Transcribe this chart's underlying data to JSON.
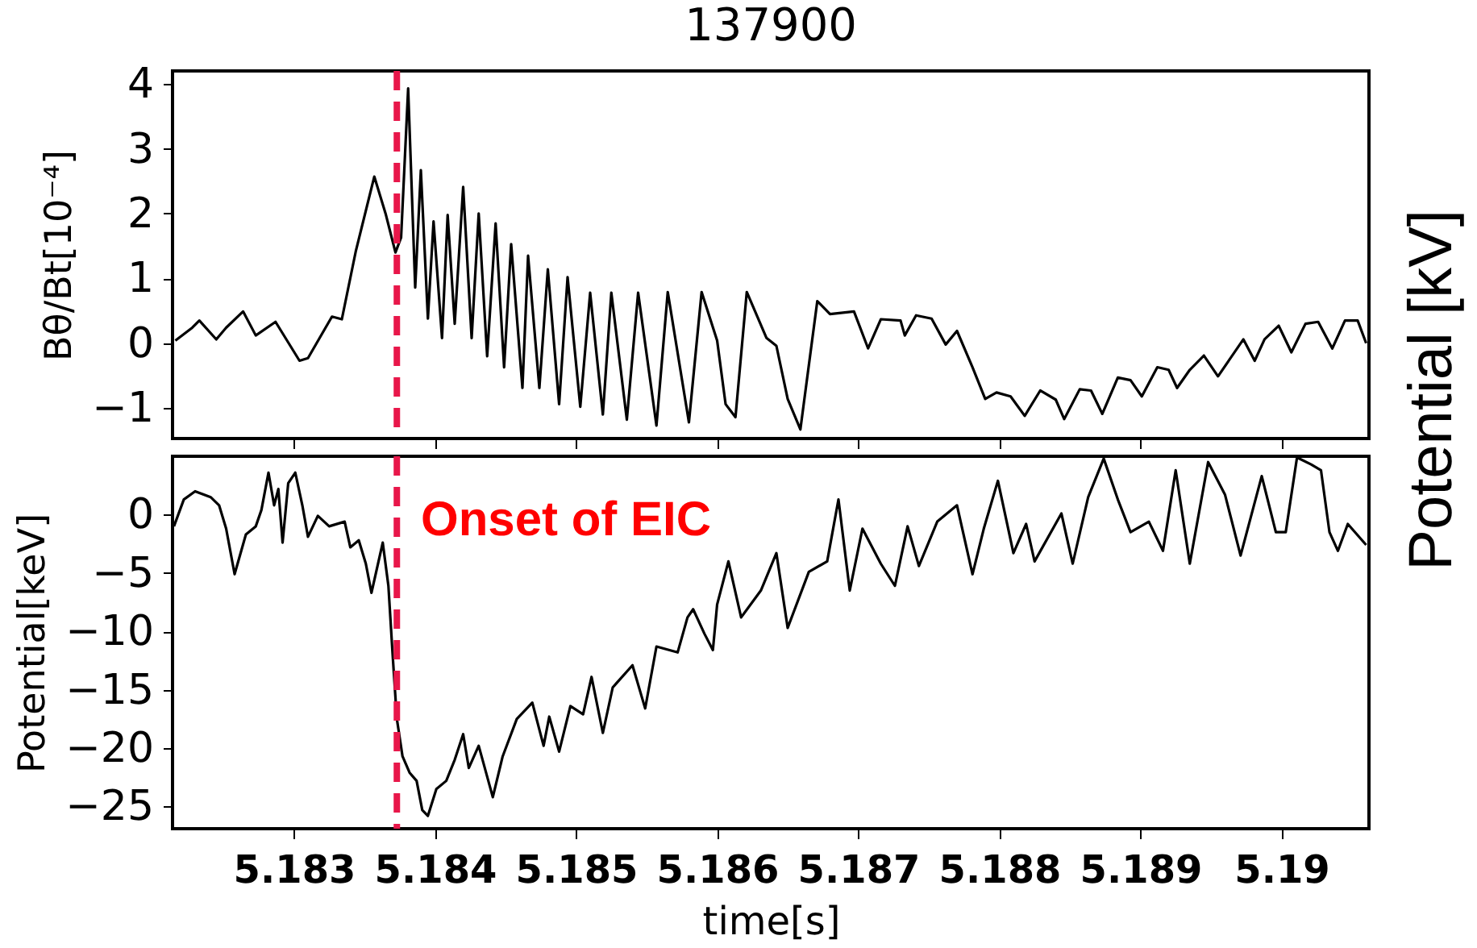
{
  "chart_data": [
    {
      "type": "line",
      "title": "137900",
      "ylabel": "Bθ/Bt[10⁻⁴]",
      "y2label": "Potential [kV]",
      "x": [
        5.18216,
        5.18228,
        5.18233,
        5.18245,
        5.18252,
        5.18264,
        5.18273,
        5.18287,
        5.18304,
        5.1831,
        5.18327,
        5.18334,
        5.18344,
        5.18357,
        5.18365,
        5.18372,
        5.18376,
        5.18381,
        5.18386,
        5.1839,
        5.18395,
        5.18399,
        5.18405,
        5.18409,
        5.18414,
        5.1842,
        5.18426,
        5.18431,
        5.18437,
        5.18443,
        5.18449,
        5.18454,
        5.18462,
        5.18466,
        5.18474,
        5.1848,
        5.18488,
        5.18494,
        5.18503,
        5.1851,
        5.18519,
        5.18525,
        5.18536,
        5.18544,
        5.18557,
        5.18565,
        5.1858,
        5.18589,
        5.186,
        5.18606,
        5.18613,
        5.18621,
        5.18635,
        5.18642,
        5.1865,
        5.18659,
        5.18671,
        5.1868,
        5.18697,
        5.18707,
        5.18716,
        5.1873,
        5.18733,
        5.18741,
        5.18752,
        5.18762,
        5.1877,
        5.18781,
        5.1879,
        5.18798,
        5.18808,
        5.18818,
        5.18829,
        5.1884,
        5.18846,
        5.18857,
        5.18865,
        5.18873,
        5.18884,
        5.18893,
        5.18901,
        5.18912,
        5.1892,
        5.18926,
        5.18935,
        5.18945,
        5.18955,
        5.18973,
        5.18981,
        5.18988,
        5.18998,
        5.19007,
        5.19017,
        5.19026,
        5.19036,
        5.19045,
        5.19054,
        5.1906
      ],
      "series": [
        {
          "color": "#000000",
          "values": [
            0.04,
            0.24,
            0.35,
            0.06,
            0.24,
            0.49,
            0.12,
            0.33,
            -0.27,
            -0.23,
            0.41,
            0.37,
            1.43,
            2.57,
            2.0,
            1.4,
            1.63,
            3.93,
            0.86,
            2.67,
            0.38,
            1.88,
            0.08,
            1.98,
            0.3,
            2.41,
            0.08,
            2.0,
            -0.2,
            1.85,
            -0.37,
            1.53,
            -0.69,
            1.35,
            -0.69,
            1.14,
            -0.94,
            1.02,
            -0.98,
            0.78,
            -1.1,
            0.78,
            -1.18,
            0.78,
            -1.27,
            0.79,
            -1.22,
            0.79,
            0.04,
            -0.94,
            -1.14,
            0.79,
            0.08,
            -0.04,
            -0.86,
            -1.33,
            0.65,
            0.45,
            0.49,
            -0.08,
            0.37,
            0.35,
            0.12,
            0.43,
            0.38,
            -0.02,
            0.19,
            -0.37,
            -0.86,
            -0.76,
            -0.82,
            -1.12,
            -0.73,
            -0.87,
            -1.17,
            -0.71,
            -0.73,
            -1.09,
            -0.53,
            -0.57,
            -0.82,
            -0.37,
            -0.41,
            -0.69,
            -0.41,
            -0.19,
            -0.51,
            0.06,
            -0.27,
            0.06,
            0.27,
            -0.14,
            0.3,
            0.33,
            -0.08,
            0.35,
            0.35,
            0.0
          ]
        }
      ],
      "xlim": [
        5.18214,
        5.19062
      ],
      "xticks": [
        5.183,
        5.184,
        5.185,
        5.186,
        5.187,
        5.188,
        5.189,
        5.19
      ],
      "ylim": [
        -1.47,
        4.2
      ],
      "yticks": [
        -1,
        0,
        1,
        2,
        3,
        4
      ],
      "tick_labels": "y",
      "ref_lines": [
        {
          "axis": "x",
          "value": 5.18373,
          "color": "#e8174a",
          "line_style": "dashed"
        }
      ]
    },
    {
      "type": "line",
      "xlabel": "time[s]",
      "ylabel": "Potential[keV]",
      "x": [
        5.18215,
        5.18222,
        5.1823,
        5.18241,
        5.18247,
        5.18252,
        5.18258,
        5.18266,
        5.18273,
        5.18277,
        5.18282,
        5.18286,
        5.18289,
        5.18292,
        5.18296,
        5.18301,
        5.18306,
        5.1831,
        5.18317,
        5.18325,
        5.18336,
        5.1834,
        5.18346,
        5.18351,
        5.18355,
        5.18363,
        5.18367,
        5.1837,
        5.18373,
        5.18377,
        5.18382,
        5.18387,
        5.18391,
        5.18395,
        5.18401,
        5.18408,
        5.18414,
        5.1842,
        5.18424,
        5.18431,
        5.18441,
        5.18448,
        5.18458,
        5.18469,
        5.18477,
        5.18481,
        5.18488,
        5.18496,
        5.18505,
        5.18511,
        5.18519,
        5.18526,
        5.1854,
        5.18549,
        5.18557,
        5.18572,
        5.18579,
        5.18583,
        5.18591,
        5.18597,
        5.186,
        5.18608,
        5.18617,
        5.18631,
        5.18642,
        5.1865,
        5.18665,
        5.18678,
        5.18686,
        5.18694,
        5.18703,
        5.18716,
        5.18726,
        5.18735,
        5.18743,
        5.18756,
        5.1877,
        5.18781,
        5.18789,
        5.18799,
        5.1881,
        5.18819,
        5.18825,
        5.18844,
        5.18852,
        5.18863,
        5.18874,
        5.18884,
        5.18893,
        5.18906,
        5.18916,
        5.18925,
        5.18935,
        5.18948,
        5.1896,
        5.18971,
        5.18986,
        5.18996,
        5.19003,
        5.19011,
        5.19021,
        5.19028,
        5.19034,
        5.1904,
        5.19047,
        5.1906
      ],
      "series": [
        {
          "color": "#000000",
          "values": [
            -1.0,
            1.3,
            2.0,
            1.5,
            0.8,
            -1.2,
            -5.1,
            -1.7,
            -1.0,
            0.4,
            3.6,
            0.8,
            2.2,
            -2.4,
            2.7,
            3.6,
            0.8,
            -1.9,
            -0.1,
            -1.0,
            -0.6,
            -2.8,
            -2.2,
            -4.2,
            -6.7,
            -2.4,
            -6.1,
            -12.0,
            -17.5,
            -20.7,
            -22.1,
            -22.8,
            -25.3,
            -25.8,
            -23.5,
            -22.8,
            -21.0,
            -18.8,
            -21.7,
            -19.8,
            -24.2,
            -20.7,
            -17.5,
            -16.1,
            -19.8,
            -17.3,
            -20.3,
            -16.4,
            -17.1,
            -13.9,
            -18.7,
            -14.8,
            -12.9,
            -16.6,
            -11.3,
            -11.8,
            -8.8,
            -8.1,
            -10.2,
            -11.6,
            -7.7,
            -4.0,
            -8.8,
            -6.5,
            -3.3,
            -9.7,
            -4.9,
            -4.0,
            1.3,
            -6.5,
            -1.2,
            -4.2,
            -6.1,
            -1.0,
            -4.4,
            -0.6,
            0.8,
            -5.1,
            -1.2,
            2.9,
            -3.3,
            -0.8,
            -4.0,
            0.1,
            -4.2,
            1.5,
            4.8,
            1.3,
            -1.5,
            -0.6,
            -3.1,
            3.8,
            -4.2,
            4.5,
            1.7,
            -3.5,
            3.3,
            -1.5,
            -1.5,
            4.9,
            4.3,
            3.8,
            -1.5,
            -3.1,
            -0.8,
            -2.6
          ]
        }
      ],
      "xlim": [
        5.18214,
        5.19062
      ],
      "xticks": [
        5.183,
        5.184,
        5.185,
        5.186,
        5.187,
        5.188,
        5.189,
        5.19
      ],
      "ylim": [
        -26.9,
        5.0
      ],
      "yticks": [
        -25,
        -20,
        -15,
        -10,
        -5,
        0
      ],
      "ref_lines": [
        {
          "axis": "x",
          "value": 5.18373,
          "color": "#e8174a",
          "line_style": "dashed"
        }
      ],
      "annotations": [
        "Onset of EIC"
      ]
    }
  ]
}
